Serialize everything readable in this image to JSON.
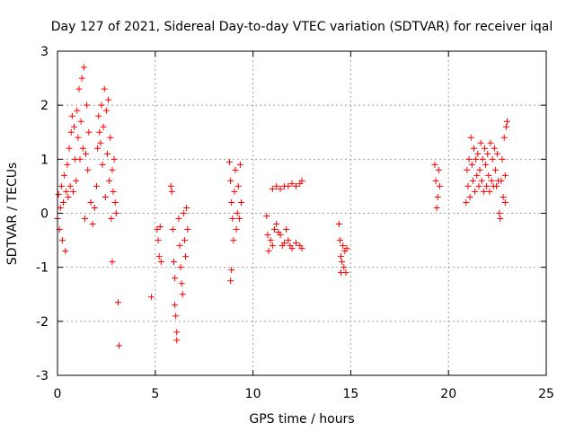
{
  "chart_data": {
    "type": "scatter",
    "title": "Day 127 of 2021, Sidereal Day-to-day VTEC variation (SDTVAR) for receiver iqal",
    "xlabel": "GPS time / hours",
    "ylabel": "SDTVAR / TECUs",
    "xlim": [
      0,
      25
    ],
    "ylim": [
      -3,
      3
    ],
    "xticks": [
      "0",
      "5",
      "10",
      "15",
      "20",
      "25"
    ],
    "yticks": [
      "-3",
      "-2",
      "-1",
      "0",
      "1",
      "2",
      "3"
    ],
    "grid": true,
    "marker": "+",
    "color": "#ff0000",
    "series": [
      {
        "name": "SDTVAR",
        "points": [
          [
            0.0,
            -0.1
          ],
          [
            0.05,
            0.35
          ],
          [
            0.1,
            -0.3
          ],
          [
            0.15,
            0.1
          ],
          [
            0.2,
            0.5
          ],
          [
            0.25,
            -0.5
          ],
          [
            0.3,
            0.2
          ],
          [
            0.35,
            0.7
          ],
          [
            0.4,
            -0.7
          ],
          [
            0.45,
            0.4
          ],
          [
            0.5,
            0.9
          ],
          [
            0.55,
            0.3
          ],
          [
            0.6,
            1.2
          ],
          [
            0.65,
            0.5
          ],
          [
            0.7,
            1.5
          ],
          [
            0.75,
            1.8
          ],
          [
            0.8,
            0.4
          ],
          [
            0.85,
            1.6
          ],
          [
            0.9,
            1.0
          ],
          [
            0.95,
            0.6
          ],
          [
            1.0,
            1.9
          ],
          [
            1.05,
            1.4
          ],
          [
            1.1,
            2.3
          ],
          [
            1.15,
            1.0
          ],
          [
            1.2,
            1.7
          ],
          [
            1.25,
            2.5
          ],
          [
            1.3,
            1.2
          ],
          [
            1.35,
            2.7
          ],
          [
            1.4,
            -0.1
          ],
          [
            1.45,
            1.1
          ],
          [
            1.5,
            2.0
          ],
          [
            1.55,
            0.8
          ],
          [
            1.6,
            1.5
          ],
          [
            1.7,
            0.2
          ],
          [
            1.8,
            -0.2
          ],
          [
            1.9,
            0.1
          ],
          [
            2.0,
            0.5
          ],
          [
            2.05,
            1.2
          ],
          [
            2.1,
            1.8
          ],
          [
            2.15,
            1.5
          ],
          [
            2.2,
            1.3
          ],
          [
            2.25,
            2.0
          ],
          [
            2.3,
            0.9
          ],
          [
            2.35,
            1.6
          ],
          [
            2.4,
            2.3
          ],
          [
            2.45,
            0.3
          ],
          [
            2.5,
            1.9
          ],
          [
            2.55,
            1.1
          ],
          [
            2.6,
            2.1
          ],
          [
            2.65,
            0.6
          ],
          [
            2.7,
            1.4
          ],
          [
            2.75,
            -0.1
          ],
          [
            2.8,
            0.8
          ],
          [
            2.85,
            0.4
          ],
          [
            2.9,
            1.0
          ],
          [
            2.95,
            0.2
          ],
          [
            2.8,
            -0.9
          ],
          [
            3.1,
            -1.65
          ],
          [
            3.15,
            -2.45
          ],
          [
            3.0,
            0.0
          ],
          [
            4.8,
            -1.55
          ],
          [
            5.1,
            -0.3
          ],
          [
            5.15,
            -0.5
          ],
          [
            5.2,
            -0.8
          ],
          [
            5.25,
            -0.25
          ],
          [
            5.3,
            -0.9
          ],
          [
            5.8,
            0.5
          ],
          [
            5.85,
            0.4
          ],
          [
            5.9,
            -0.3
          ],
          [
            5.95,
            -0.9
          ],
          [
            6.0,
            -1.2
          ],
          [
            6.0,
            -1.7
          ],
          [
            6.05,
            -1.9
          ],
          [
            6.1,
            -2.2
          ],
          [
            6.1,
            -2.35
          ],
          [
            6.2,
            -0.1
          ],
          [
            6.25,
            -0.6
          ],
          [
            6.3,
            -1.0
          ],
          [
            6.35,
            -1.3
          ],
          [
            6.4,
            -1.5
          ],
          [
            6.45,
            0.0
          ],
          [
            6.5,
            -0.5
          ],
          [
            6.55,
            -0.8
          ],
          [
            6.6,
            0.1
          ],
          [
            6.65,
            -0.3
          ],
          [
            8.8,
            0.95
          ],
          [
            8.85,
            0.6
          ],
          [
            8.9,
            0.2
          ],
          [
            8.95,
            -0.1
          ],
          [
            9.0,
            -0.5
          ],
          [
            8.9,
            -1.05
          ],
          [
            8.85,
            -1.25
          ],
          [
            9.05,
            0.4
          ],
          [
            9.1,
            0.8
          ],
          [
            9.15,
            -0.3
          ],
          [
            9.2,
            0.0
          ],
          [
            9.25,
            0.5
          ],
          [
            9.3,
            -0.1
          ],
          [
            9.35,
            0.9
          ],
          [
            9.4,
            0.2
          ],
          [
            10.7,
            -0.05
          ],
          [
            10.75,
            -0.4
          ],
          [
            10.8,
            -0.7
          ],
          [
            10.9,
            -0.5
          ],
          [
            11.0,
            -0.6
          ],
          [
            11.1,
            -0.3
          ],
          [
            11.2,
            -0.2
          ],
          [
            11.3,
            -0.35
          ],
          [
            11.4,
            -0.4
          ],
          [
            11.5,
            -0.6
          ],
          [
            11.6,
            -0.55
          ],
          [
            11.7,
            -0.3
          ],
          [
            11.8,
            -0.5
          ],
          [
            11.9,
            -0.6
          ],
          [
            12.0,
            -0.65
          ],
          [
            12.2,
            -0.55
          ],
          [
            12.4,
            -0.6
          ],
          [
            12.5,
            -0.65
          ],
          [
            11.0,
            0.45
          ],
          [
            11.2,
            0.5
          ],
          [
            11.4,
            0.45
          ],
          [
            11.6,
            0.5
          ],
          [
            11.8,
            0.5
          ],
          [
            12.0,
            0.55
          ],
          [
            12.2,
            0.5
          ],
          [
            12.4,
            0.55
          ],
          [
            12.5,
            0.6
          ],
          [
            14.4,
            -0.2
          ],
          [
            14.45,
            -0.5
          ],
          [
            14.5,
            -0.8
          ],
          [
            14.5,
            -1.1
          ],
          [
            14.55,
            -0.9
          ],
          [
            14.6,
            -0.6
          ],
          [
            14.65,
            -1.0
          ],
          [
            14.7,
            -0.7
          ],
          [
            14.75,
            -1.1
          ],
          [
            14.8,
            -0.65
          ],
          [
            19.3,
            0.9
          ],
          [
            19.35,
            0.6
          ],
          [
            19.4,
            0.1
          ],
          [
            19.45,
            0.3
          ],
          [
            19.5,
            0.8
          ],
          [
            19.55,
            0.5
          ],
          [
            20.9,
            0.2
          ],
          [
            20.95,
            0.8
          ],
          [
            21.0,
            0.5
          ],
          [
            21.05,
            1.0
          ],
          [
            21.1,
            0.3
          ],
          [
            21.15,
            1.4
          ],
          [
            21.2,
            0.9
          ],
          [
            21.25,
            0.6
          ],
          [
            21.3,
            1.2
          ],
          [
            21.35,
            0.4
          ],
          [
            21.4,
            1.0
          ],
          [
            21.45,
            0.7
          ],
          [
            21.5,
            1.1
          ],
          [
            21.55,
            0.5
          ],
          [
            21.6,
            0.8
          ],
          [
            21.65,
            1.3
          ],
          [
            21.7,
            0.6
          ],
          [
            21.75,
            1.0
          ],
          [
            21.8,
            0.4
          ],
          [
            21.85,
            1.2
          ],
          [
            21.9,
            0.9
          ],
          [
            21.95,
            0.5
          ],
          [
            22.0,
            1.1
          ],
          [
            22.05,
            0.7
          ],
          [
            22.1,
            0.4
          ],
          [
            22.15,
            1.3
          ],
          [
            22.2,
            0.6
          ],
          [
            22.25,
            1.0
          ],
          [
            22.3,
            0.5
          ],
          [
            22.35,
            1.2
          ],
          [
            22.4,
            0.8
          ],
          [
            22.45,
            0.5
          ],
          [
            22.5,
            1.1
          ],
          [
            22.55,
            0.6
          ],
          [
            22.6,
            0.0
          ],
          [
            22.65,
            -0.1
          ],
          [
            22.7,
            0.6
          ],
          [
            22.75,
            1.0
          ],
          [
            22.8,
            0.3
          ],
          [
            22.85,
            1.4
          ],
          [
            22.9,
            0.7
          ],
          [
            22.95,
            1.6
          ],
          [
            23.0,
            1.7
          ],
          [
            22.9,
            0.2
          ]
        ]
      }
    ]
  }
}
